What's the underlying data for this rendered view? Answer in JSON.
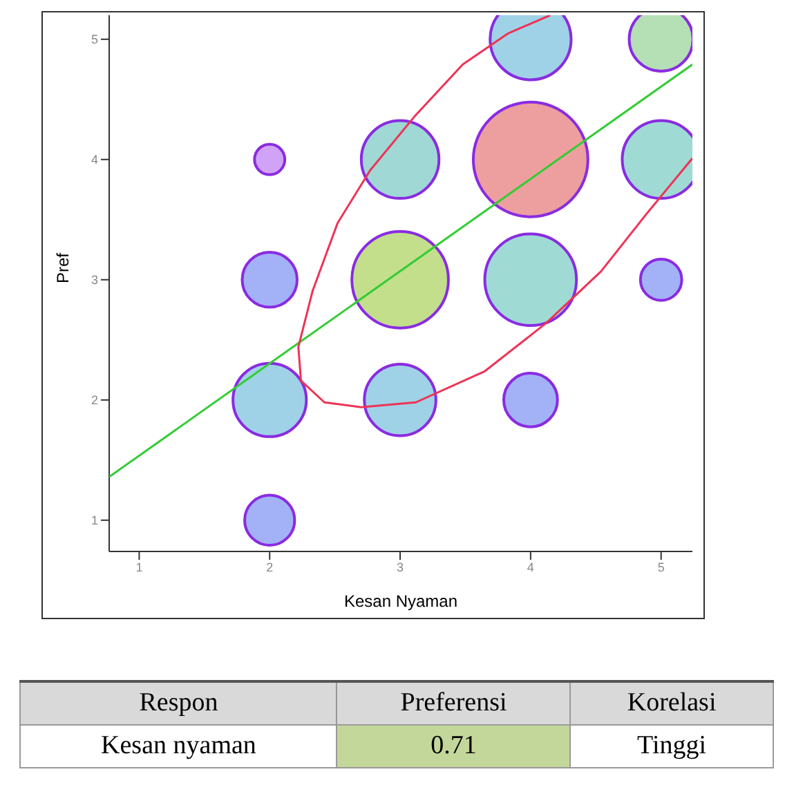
{
  "chart_data": {
    "type": "bubble",
    "xlabel": "Kesan Nyaman",
    "ylabel": "Pref",
    "xlim": [
      0.77,
      5.24
    ],
    "ylim": [
      0.74,
      5.2
    ],
    "xticks": [
      1,
      2,
      3,
      4,
      5
    ],
    "yticks": [
      1,
      2,
      3,
      4,
      5
    ],
    "grid": false,
    "legend": false,
    "series": [
      {
        "color": "#8a2be2",
        "x": [
          2,
          2,
          2,
          2,
          3,
          3,
          3,
          4,
          4,
          4,
          4,
          5,
          5,
          5
        ],
        "values": [
          1,
          2,
          3,
          4,
          2,
          3,
          4,
          2,
          3,
          4,
          5,
          3,
          4,
          5
        ],
        "sizes": [
          0.19,
          0.41,
          0.23,
          0.07,
          0.39,
          0.71,
          0.46,
          0.22,
          0.64,
          1,
          0.5,
          0.13,
          0.46,
          0.31
        ],
        "colors": [
          "#3355ee",
          "#2a9bc8",
          "#3355ee",
          "#9933ee",
          "#2a9bc8",
          "#7ab800",
          "#2aa8a0",
          "#3355ee",
          "#2ab0a0",
          "#d62a2a",
          "#2a9bc8",
          "#3355ee",
          "#2ab0a0",
          "#5cb85c"
        ]
      },
      {
        "type": "line",
        "color": "#33cc33",
        "x": [
          0.77,
          5.24
        ],
        "values": [
          1.36,
          4.79
        ]
      },
      {
        "type": "line",
        "color": "#ee3355",
        "x": [
          4.15,
          3.83,
          3.48,
          3.12,
          2.77,
          2.52,
          2.33,
          2.22,
          2.24,
          2.42,
          2.7,
          3.12,
          3.65,
          4.12,
          4.54,
          4.89,
          5.24
        ],
        "values": [
          5.2,
          5.05,
          4.79,
          4.37,
          3.91,
          3.47,
          2.91,
          2.44,
          2.16,
          1.98,
          1.94,
          1.98,
          2.24,
          2.64,
          3.07,
          3.55,
          4.01
        ]
      }
    ],
    "annotations": [
      "Respon",
      "Preferensi",
      "Korelasi",
      "Kesan nyaman",
      "0.71",
      "Tinggi"
    ]
  }
}
